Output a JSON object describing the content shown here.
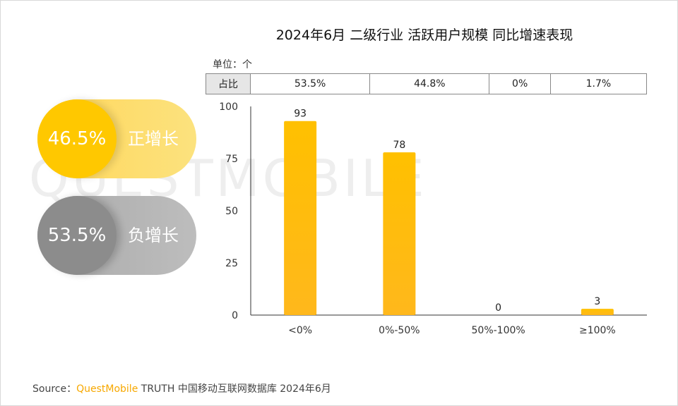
{
  "title": "2024年6月 二级行业 活跃用户规模 同比增速表现",
  "unit_label": "单位：个",
  "ratio_row": {
    "header": "占比",
    "values": [
      "53.5%",
      "44.8%",
      "0%",
      "1.7%"
    ]
  },
  "summary": {
    "positive": {
      "percent": "46.5%",
      "label": "正增长"
    },
    "negative": {
      "percent": "53.5%",
      "label": "负增长"
    }
  },
  "watermark": "QUESTMOBILE",
  "source": {
    "prefix": "Source：",
    "brand": "QuestMobile",
    "rest": "TRUTH 中国移动互联网数据库 2024年6月"
  },
  "colors": {
    "bar": "#ffc000",
    "positive": "#ffc800",
    "negative": "#8c8c8c"
  },
  "chart_data": {
    "type": "bar",
    "categories": [
      "<0%",
      "0%-50%",
      "50%-100%",
      "≥100%"
    ],
    "values": [
      93,
      78,
      0,
      3
    ],
    "yticks": [
      0,
      25,
      50,
      75,
      100
    ],
    "ylim": [
      0,
      100
    ],
    "grid": false
  }
}
